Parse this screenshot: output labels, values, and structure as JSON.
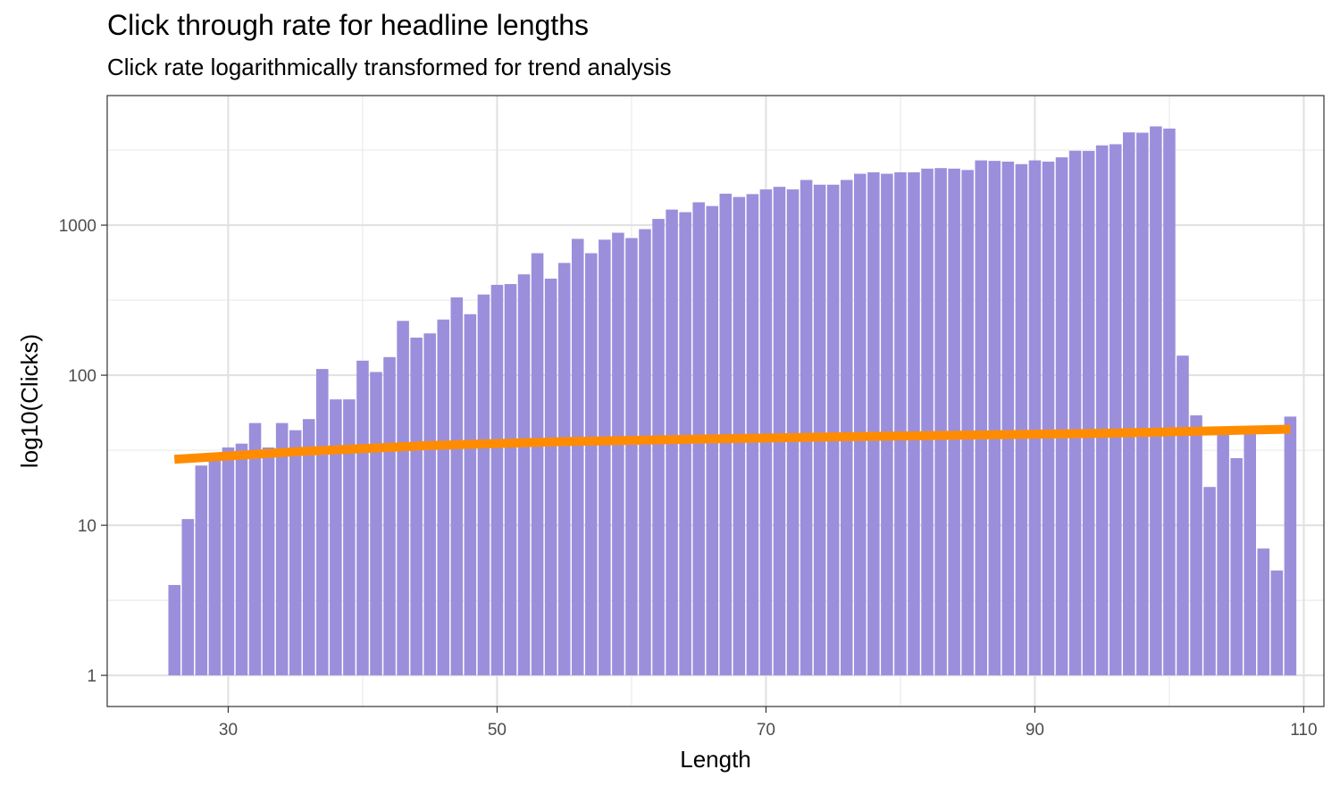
{
  "chart_data": {
    "type": "bar",
    "title": "Click through rate for headline lengths",
    "subtitle": "Click rate logarithmically transformed for trend analysis",
    "xlabel": "Length",
    "ylabel": "log10(Clicks)",
    "x_scale": "linear",
    "y_scale": "log10",
    "xlim": [
      21,
      111.5
    ],
    "ylim": [
      0.62,
      7300
    ],
    "x_ticks": [
      30,
      50,
      70,
      90,
      110
    ],
    "y_ticks": [
      1,
      10,
      100,
      1000
    ],
    "y_tick_labels": [
      "1",
      "10",
      "100",
      "1000"
    ],
    "grid": true,
    "bar_color": "#9b8fdc",
    "trend_color": "#ff8c00",
    "x": [
      26,
      27,
      28,
      29,
      30,
      31,
      32,
      33,
      34,
      35,
      36,
      37,
      38,
      39,
      40,
      41,
      42,
      43,
      44,
      45,
      46,
      47,
      48,
      49,
      50,
      51,
      52,
      53,
      54,
      55,
      56,
      57,
      58,
      59,
      60,
      61,
      62,
      63,
      64,
      65,
      66,
      67,
      68,
      69,
      70,
      71,
      72,
      73,
      74,
      75,
      76,
      77,
      78,
      79,
      80,
      81,
      82,
      83,
      84,
      85,
      86,
      87,
      88,
      89,
      90,
      91,
      92,
      93,
      94,
      95,
      96,
      97,
      98,
      99,
      100,
      101,
      102,
      103,
      104,
      105,
      106,
      107,
      108,
      109
    ],
    "values": [
      4,
      11,
      25,
      27,
      33,
      35,
      48,
      33,
      48,
      43,
      51,
      110,
      69,
      69,
      125,
      105,
      132,
      230,
      178,
      190,
      235,
      330,
      255,
      345,
      400,
      405,
      470,
      650,
      440,
      560,
      810,
      650,
      800,
      890,
      820,
      940,
      1100,
      1270,
      1220,
      1420,
      1340,
      1620,
      1540,
      1610,
      1730,
      1800,
      1730,
      2000,
      1860,
      1860,
      2000,
      2200,
      2250,
      2200,
      2250,
      2250,
      2380,
      2400,
      2380,
      2330,
      2700,
      2680,
      2650,
      2550,
      2700,
      2650,
      2830,
      3130,
      3120,
      3400,
      3460,
      4150,
      4130,
      4550,
      4400,
      135,
      54,
      18,
      42,
      28,
      42,
      7,
      5,
      53
    ],
    "trend": {
      "x": [
        26,
        35,
        45,
        55,
        65,
        75,
        85,
        95,
        109
      ],
      "y": [
        27.5,
        30.9,
        34,
        36.1,
        37.5,
        38.8,
        39.9,
        41,
        43.7
      ]
    }
  }
}
